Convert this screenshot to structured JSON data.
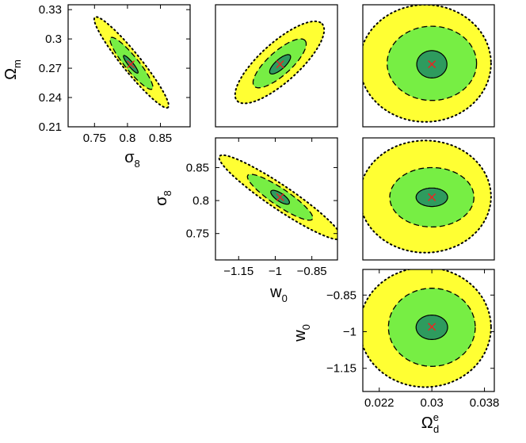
{
  "chart_data": {
    "type": "scatter",
    "title": "",
    "description_of_marks": "triangle of 2D confidence ellipses, fiducial point marked with red x",
    "colors": {
      "outer_fill": "#ffff33",
      "middle_fill": "#77ee44",
      "inner_fill": "#2e9b5e",
      "marker": "#ee2222",
      "frame": "#000000"
    },
    "parameters": {
      "Om": {
        "symbol": "Ω",
        "sub": "m",
        "sup": "",
        "fiducial": 0.274,
        "range": [
          0.21,
          0.335
        ],
        "ticks": [
          0.21,
          0.24,
          0.27,
          0.3,
          0.33
        ],
        "tick_labels": [
          "0.21",
          "0.24",
          "0.27",
          "0.3",
          "0.33"
        ]
      },
      "s8": {
        "symbol": "σ",
        "sub": "8",
        "sup": "",
        "fiducial": 0.805,
        "range": [
          0.71,
          0.895
        ],
        "ticks": [
          0.75,
          0.8,
          0.85
        ],
        "tick_labels": [
          "0.75",
          "0.8",
          "0.85"
        ]
      },
      "w0": {
        "symbol": "w",
        "sub": "0",
        "sup": "",
        "fiducial": -0.98,
        "range": [
          -1.245,
          -0.745
        ],
        "ticks": [
          -1.15,
          -1,
          -0.85
        ],
        "tick_labels": [
          "−1.15",
          "−1",
          "−0.85"
        ]
      },
      "Od": {
        "symbol": "Ω",
        "sub": "d",
        "sup": "e",
        "fiducial": 0.03,
        "range": [
          0.0195,
          0.0395
        ],
        "ticks": [
          0.022,
          0.03,
          0.038
        ],
        "tick_labels": [
          "0.022",
          "0.03",
          "0.038"
        ]
      }
    },
    "panels": [
      {
        "x": "s8",
        "y": "Om",
        "ellipses": [
          {
            "level": "outer",
            "center": [
              0.806,
              0.276
            ],
            "semi_axes": [
              0.088,
              0.0095
            ],
            "angle": -51
          },
          {
            "level": "middle",
            "center": [
              0.806,
              0.275
            ],
            "semi_axes": [
              0.05,
              0.007
            ],
            "angle": -51
          },
          {
            "level": "inner",
            "center": [
              0.805,
              0.274
            ],
            "semi_axes": [
              0.017,
              0.0025
            ],
            "angle": -51
          }
        ]
      },
      {
        "x": "w0",
        "y": "Om",
        "ellipses": [
          {
            "level": "outer",
            "center": [
              -0.982,
              0.276
            ],
            "semi_axes": [
              0.235,
              0.02
            ],
            "angle": 42
          },
          {
            "level": "middle",
            "center": [
              -0.982,
              0.275
            ],
            "semi_axes": [
              0.14,
              0.012
            ],
            "angle": 42
          },
          {
            "level": "inner",
            "center": [
              -0.98,
              0.274
            ],
            "semi_axes": [
              0.055,
              0.005
            ],
            "angle": 42
          }
        ]
      },
      {
        "x": "Od",
        "y": "Om",
        "ellipses": [
          {
            "level": "outer",
            "center": [
              0.029,
              0.275
            ],
            "semi_axes": [
              0.01,
              0.06
            ],
            "angle": 0
          },
          {
            "level": "middle",
            "center": [
              0.03,
              0.275
            ],
            "semi_axes": [
              0.0068,
              0.038
            ],
            "angle": 0
          },
          {
            "level": "inner",
            "center": [
              0.03,
              0.274
            ],
            "semi_axes": [
              0.0023,
              0.014
            ],
            "angle": 0
          }
        ]
      },
      {
        "x": "w0",
        "y": "s8",
        "ellipses": [
          {
            "level": "outer",
            "center": [
              -0.98,
              0.805
            ],
            "semi_axes": [
              0.3,
              0.018
            ],
            "angle": -34
          },
          {
            "level": "middle",
            "center": [
              -0.98,
              0.805
            ],
            "semi_axes": [
              0.16,
              0.013
            ],
            "angle": -34
          },
          {
            "level": "inner",
            "center": [
              -0.98,
              0.805
            ],
            "semi_axes": [
              0.045,
              0.006
            ],
            "angle": -34
          }
        ]
      },
      {
        "x": "Od",
        "y": "s8",
        "ellipses": [
          {
            "level": "outer",
            "center": [
              0.029,
              0.806
            ],
            "semi_axes": [
              0.01,
              0.085
            ],
            "angle": 0
          },
          {
            "level": "middle",
            "center": [
              0.03,
              0.805
            ],
            "semi_axes": [
              0.0064,
              0.045
            ],
            "angle": 0
          },
          {
            "level": "inner",
            "center": [
              0.03,
              0.805
            ],
            "semi_axes": [
              0.0024,
              0.014
            ],
            "angle": 0
          }
        ]
      },
      {
        "x": "Od",
        "y": "w0",
        "ellipses": [
          {
            "level": "outer",
            "center": [
              0.029,
              -0.982
            ],
            "semi_axes": [
              0.01,
              0.245
            ],
            "angle": 0
          },
          {
            "level": "middle",
            "center": [
              0.03,
              -0.982
            ],
            "semi_axes": [
              0.0066,
              0.16
            ],
            "angle": 0
          },
          {
            "level": "inner",
            "center": [
              0.03,
              -0.982
            ],
            "semi_axes": [
              0.0024,
              0.05
            ],
            "angle": 0
          }
        ]
      }
    ],
    "axis_labels_shown": [
      {
        "param": "Om",
        "axis": "y",
        "panel": 0
      },
      {
        "param": "s8",
        "axis": "x",
        "panel": 0
      },
      {
        "param": "s8",
        "axis": "y",
        "panel": 3
      },
      {
        "param": "w0",
        "axis": "x",
        "panel": 3
      },
      {
        "param": "w0",
        "axis": "y",
        "panel": 5
      },
      {
        "param": "Od",
        "axis": "x",
        "panel": 5
      }
    ]
  }
}
